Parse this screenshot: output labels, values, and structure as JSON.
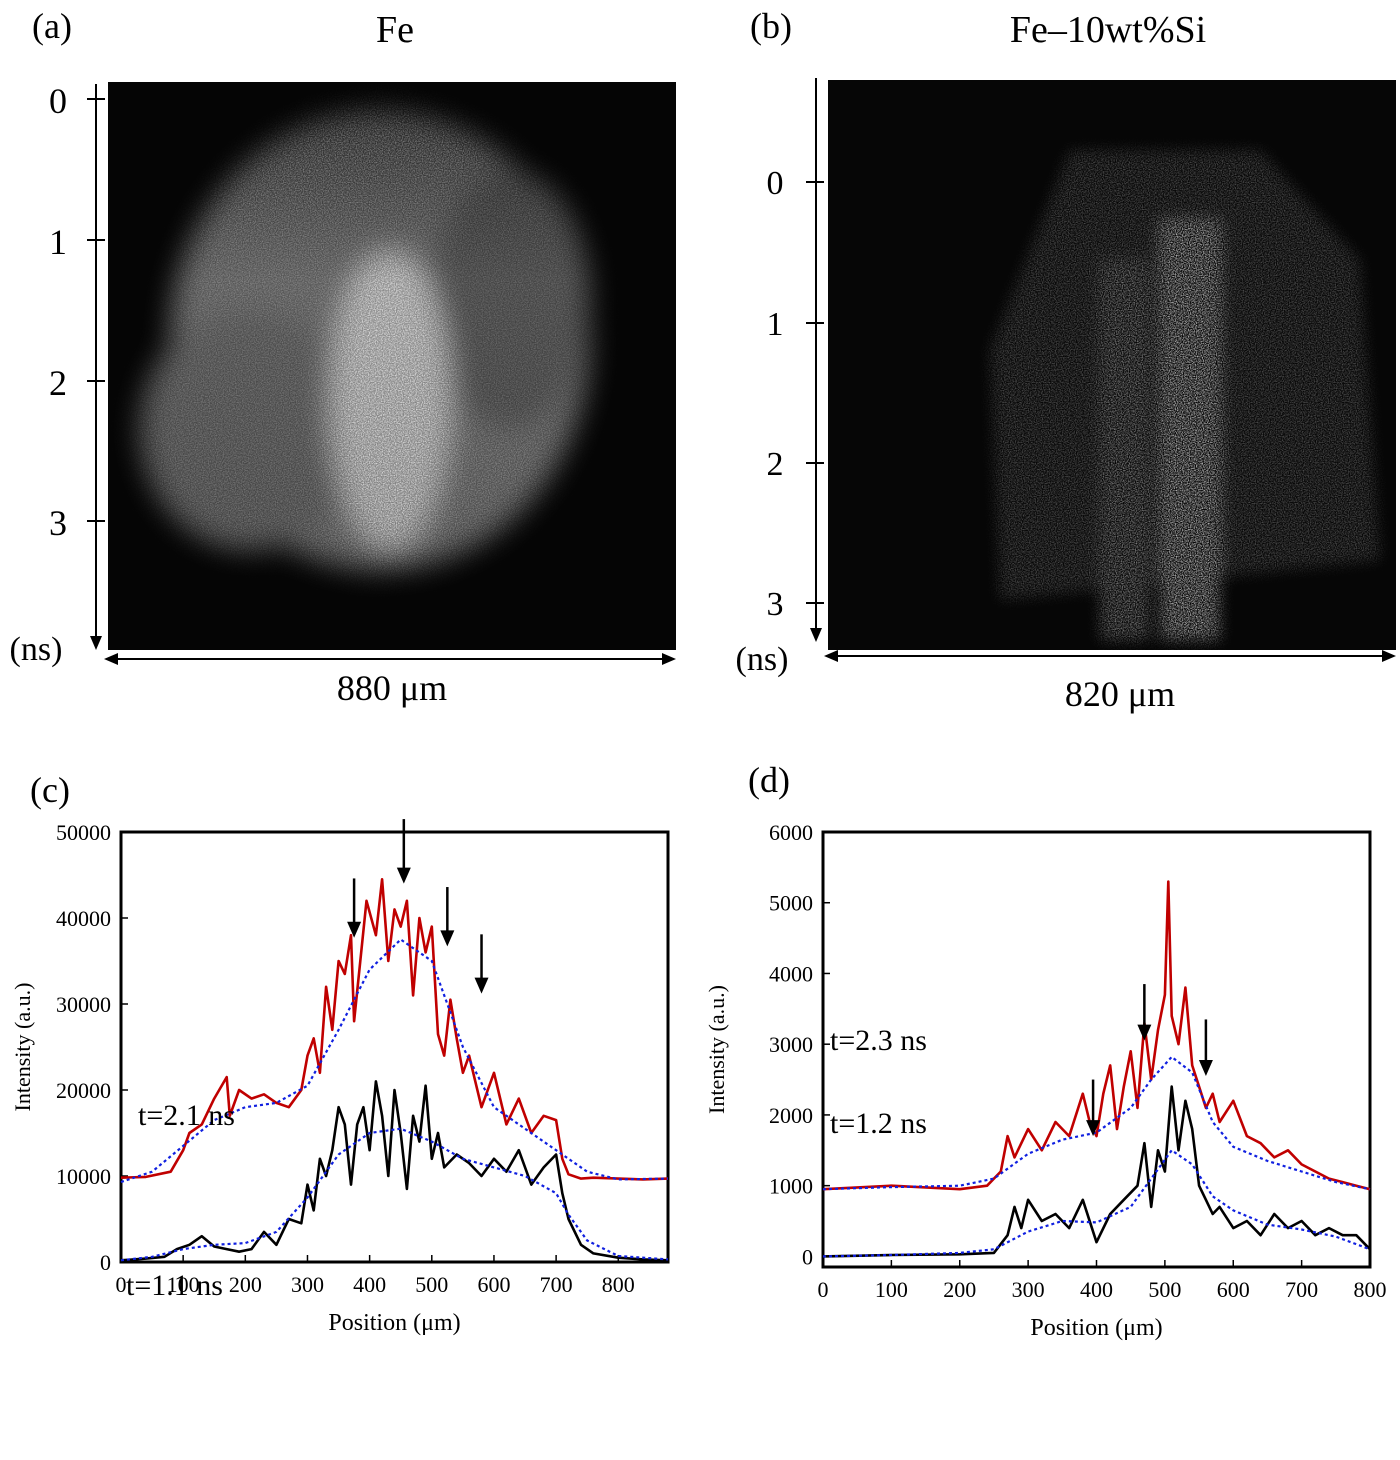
{
  "panels": {
    "a": {
      "label": "(a)",
      "title": "Fe",
      "time_ticks": [
        "0",
        "1",
        "2",
        "3"
      ],
      "time_unit": "(ns)",
      "width_label": "880 μm"
    },
    "b": {
      "label": "(b)",
      "title": "Fe–10wt%Si",
      "time_ticks": [
        "0",
        "1",
        "2",
        "3"
      ],
      "time_unit": "(ns)",
      "width_label": "820 μm"
    },
    "c": {
      "label": "(c)"
    },
    "d": {
      "label": "(d)"
    }
  },
  "colors": {
    "late": "#c00000",
    "early": "#000000",
    "fit": "#1020e0",
    "image_bg": "#050505"
  },
  "chart_data": [
    {
      "id": "c",
      "type": "line",
      "xlabel": "Position (μm)",
      "ylabel": "Intensity (a.u.)",
      "xlim": [
        0,
        880
      ],
      "ylim": [
        0,
        50000
      ],
      "xticks": [
        0,
        100,
        200,
        300,
        400,
        500,
        600,
        700,
        800
      ],
      "yticks": [
        0,
        10000,
        20000,
        30000,
        40000,
        50000
      ],
      "series": [
        {
          "name": "t=2.1 ns",
          "color": "#c00000",
          "style": "solid",
          "x": [
            0,
            40,
            80,
            100,
            110,
            130,
            150,
            170,
            175,
            190,
            210,
            230,
            250,
            270,
            290,
            300,
            310,
            320,
            330,
            340,
            350,
            360,
            370,
            375,
            385,
            395,
            410,
            420,
            430,
            440,
            450,
            460,
            470,
            480,
            490,
            500,
            510,
            520,
            530,
            540,
            550,
            560,
            570,
            580,
            600,
            620,
            640,
            660,
            680,
            700,
            710,
            720,
            740,
            760,
            800,
            840,
            880
          ],
          "y": [
            9800,
            9900,
            10500,
            13000,
            15000,
            16000,
            19000,
            21500,
            17000,
            20000,
            19000,
            19500,
            18500,
            18000,
            20000,
            24000,
            26000,
            22000,
            32000,
            27000,
            35000,
            33500,
            38000,
            28000,
            35000,
            42000,
            38000,
            44500,
            35000,
            41000,
            39000,
            42000,
            31000,
            40000,
            36000,
            39000,
            26500,
            24000,
            30500,
            26000,
            22000,
            24000,
            21000,
            18000,
            22000,
            16000,
            19000,
            15000,
            17000,
            16500,
            12000,
            10200,
            9700,
            9800,
            9700,
            9600,
            9700
          ]
        },
        {
          "name": "t=1.1 ns",
          "color": "#000000",
          "style": "solid",
          "x": [
            0,
            40,
            70,
            90,
            110,
            130,
            150,
            170,
            190,
            210,
            230,
            250,
            270,
            290,
            300,
            310,
            320,
            330,
            340,
            350,
            360,
            370,
            380,
            390,
            400,
            410,
            420,
            430,
            440,
            450,
            460,
            470,
            480,
            490,
            500,
            510,
            520,
            540,
            560,
            580,
            600,
            620,
            640,
            660,
            680,
            700,
            710,
            720,
            740,
            760,
            800,
            840,
            880
          ],
          "y": [
            200,
            400,
            600,
            1500,
            2000,
            3000,
            1800,
            1500,
            1200,
            1500,
            3500,
            2000,
            5000,
            4500,
            9000,
            6000,
            12000,
            10000,
            13000,
            18000,
            16000,
            9000,
            16000,
            18000,
            13000,
            21000,
            17000,
            10000,
            20000,
            15000,
            8500,
            17000,
            14000,
            20500,
            12000,
            15000,
            11000,
            12500,
            11500,
            10000,
            12000,
            10500,
            13000,
            9000,
            11000,
            12500,
            8000,
            5000,
            2000,
            1000,
            500,
            300,
            200
          ]
        },
        {
          "name": "",
          "color": "#1020e0",
          "style": "dotted",
          "x": [
            0,
            50,
            100,
            150,
            200,
            250,
            300,
            350,
            400,
            450,
            500,
            550,
            600,
            650,
            700,
            750,
            800,
            880
          ],
          "y": [
            9300,
            10500,
            13500,
            16500,
            18000,
            18500,
            20500,
            27000,
            34000,
            37500,
            35000,
            25000,
            18000,
            15500,
            13000,
            10500,
            9600,
            9700
          ]
        },
        {
          "name": "",
          "color": "#1020e0",
          "style": "dotted",
          "x": [
            0,
            50,
            100,
            150,
            200,
            250,
            300,
            350,
            400,
            450,
            500,
            550,
            600,
            650,
            700,
            720,
            750,
            800,
            880
          ],
          "y": [
            200,
            600,
            1500,
            2000,
            2200,
            3500,
            7500,
            12500,
            15000,
            15500,
            14000,
            12000,
            11000,
            10000,
            8000,
            5500,
            2500,
            700,
            300
          ]
        }
      ],
      "arrows_x": [
        375,
        455,
        525,
        580
      ],
      "arrows_tip_y": [
        37700,
        44000,
        36700,
        31200
      ],
      "arrows_tail_y": [
        44600,
        51500,
        43600,
        38100
      ]
    },
    {
      "id": "d",
      "type": "line",
      "xlabel": "Position (μm)",
      "ylabel": "Intensity (a.u.)",
      "xlim": [
        0,
        800
      ],
      "ylim": [
        -150,
        6000
      ],
      "xticks": [
        0,
        100,
        200,
        300,
        400,
        500,
        600,
        700,
        800
      ],
      "yticks": [
        0,
        1000,
        2000,
        3000,
        4000,
        5000,
        6000
      ],
      "series": [
        {
          "name": "t=2.3 ns",
          "color": "#c00000",
          "style": "solid",
          "x": [
            0,
            100,
            200,
            240,
            260,
            270,
            280,
            300,
            320,
            340,
            360,
            380,
            390,
            400,
            410,
            420,
            430,
            440,
            450,
            460,
            470,
            480,
            490,
            500,
            505,
            510,
            520,
            530,
            540,
            550,
            560,
            570,
            580,
            600,
            620,
            640,
            660,
            680,
            700,
            720,
            740,
            760,
            780,
            800
          ],
          "y": [
            950,
            1000,
            950,
            1000,
            1200,
            1700,
            1400,
            1800,
            1500,
            1900,
            1700,
            2300,
            1900,
            1700,
            2300,
            2700,
            1800,
            2400,
            2900,
            2100,
            3300,
            2500,
            3200,
            3700,
            5300,
            3400,
            3000,
            3800,
            2700,
            2400,
            2100,
            2300,
            1900,
            2200,
            1700,
            1600,
            1400,
            1500,
            1300,
            1200,
            1100,
            1050,
            1000,
            950
          ]
        },
        {
          "name": "t=1.2 ns",
          "color": "#000000",
          "style": "solid",
          "x": [
            0,
            100,
            200,
            250,
            270,
            280,
            290,
            300,
            320,
            340,
            360,
            380,
            400,
            420,
            440,
            460,
            470,
            480,
            490,
            500,
            510,
            520,
            530,
            540,
            550,
            560,
            570,
            580,
            600,
            620,
            640,
            660,
            680,
            700,
            720,
            740,
            760,
            780,
            800
          ],
          "y": [
            0,
            20,
            30,
            50,
            300,
            700,
            400,
            800,
            500,
            600,
            400,
            800,
            200,
            600,
            800,
            1000,
            1600,
            700,
            1500,
            1200,
            2400,
            1500,
            2200,
            1800,
            1000,
            800,
            600,
            700,
            400,
            500,
            300,
            600,
            400,
            500,
            300,
            400,
            300,
            300,
            100
          ]
        },
        {
          "name": "",
          "color": "#1020e0",
          "style": "dotted",
          "x": [
            0,
            100,
            200,
            250,
            300,
            350,
            400,
            450,
            480,
            510,
            540,
            570,
            600,
            650,
            700,
            750,
            800
          ],
          "y": [
            950,
            980,
            1000,
            1100,
            1450,
            1650,
            1750,
            2100,
            2500,
            2820,
            2600,
            1900,
            1550,
            1350,
            1200,
            1050,
            950
          ]
        },
        {
          "name": "",
          "color": "#1020e0",
          "style": "dotted",
          "x": [
            0,
            100,
            200,
            250,
            300,
            350,
            400,
            450,
            480,
            510,
            540,
            570,
            600,
            650,
            700,
            750,
            800
          ],
          "y": [
            0,
            20,
            50,
            100,
            350,
            500,
            480,
            700,
            1100,
            1500,
            1300,
            850,
            650,
            450,
            380,
            280,
            100
          ]
        }
      ],
      "arrows_x": [
        395,
        470,
        560
      ],
      "arrows_tip_y": [
        1700,
        3050,
        2550
      ],
      "arrows_tail_y": [
        2500,
        3850,
        3350
      ]
    }
  ]
}
